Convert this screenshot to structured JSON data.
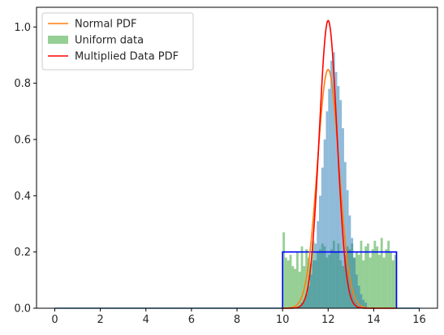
{
  "chart_data": {
    "type": "histogram",
    "title": "",
    "xlabel": "",
    "ylabel": "",
    "xlim": [
      -0.8,
      16.8
    ],
    "ylim": [
      0,
      1.07
    ],
    "xticks": [
      0,
      2,
      4,
      6,
      8,
      10,
      12,
      14,
      16
    ],
    "yticks": [
      0.0,
      0.2,
      0.4,
      0.6,
      0.8,
      1.0
    ],
    "xtick_labels": [
      "0",
      "2",
      "4",
      "6",
      "8",
      "10",
      "12",
      "14",
      "16"
    ],
    "ytick_labels": [
      "0.0",
      "0.2",
      "0.4",
      "0.6",
      "0.8",
      "1.0"
    ],
    "grid": false,
    "legend": {
      "placement": "top-left",
      "entries": [
        {
          "label": "Normal PDF",
          "color": "#ff7f0e",
          "kind": "line"
        },
        {
          "label": "Uniform data",
          "color": "#2ca02c",
          "kind": "patch"
        },
        {
          "label": "Multiplied Data PDF",
          "color": "#ff0000",
          "kind": "line"
        }
      ]
    },
    "series": [
      {
        "name": "Uniform data",
        "kind": "histogram",
        "color": "#2ca02c",
        "opacity": 0.5,
        "bin_start": 10.0,
        "bin_width": 0.1,
        "values": [
          0.27,
          0.18,
          0.17,
          0.19,
          0.15,
          0.14,
          0.2,
          0.13,
          0.22,
          0.15,
          0.21,
          0.18,
          0.16,
          0.24,
          0.17,
          0.2,
          0.21,
          0.23,
          0.22,
          0.18,
          0.19,
          0.21,
          0.24,
          0.2,
          0.23,
          0.17,
          0.15,
          0.19,
          0.22,
          0.21,
          0.23,
          0.18,
          0.2,
          0.19,
          0.24,
          0.17,
          0.22,
          0.23,
          0.18,
          0.21,
          0.24,
          0.22,
          0.19,
          0.25,
          0.18,
          0.21,
          0.24,
          0.2,
          0.17,
          0.19
        ]
      },
      {
        "name": "Normal data",
        "kind": "histogram",
        "color": "#1f77b4",
        "opacity": 0.5,
        "bin_start": 10.7,
        "bin_width": 0.1,
        "values": [
          0.01,
          0.02,
          0.03,
          0.05,
          0.08,
          0.12,
          0.17,
          0.23,
          0.31,
          0.4,
          0.5,
          0.6,
          0.7,
          0.78,
          0.88,
          0.91,
          0.84,
          0.79,
          0.74,
          0.64,
          0.52,
          0.42,
          0.33,
          0.25,
          0.18,
          0.12,
          0.08,
          0.05,
          0.03,
          0.02
        ]
      },
      {
        "name": "Uniform PDF",
        "kind": "step",
        "color": "#1f77b4",
        "x": [
          0,
          10,
          10,
          15,
          15,
          16
        ],
        "y": [
          0,
          0,
          0.2,
          0.2,
          0,
          0
        ]
      },
      {
        "name": "Uniform PDF outline",
        "kind": "step",
        "color": "#0000ff",
        "x": [
          10,
          10,
          15,
          15
        ],
        "y": [
          0,
          0.2,
          0.2,
          0
        ]
      },
      {
        "name": "Normal PDF",
        "kind": "gaussian",
        "color": "#ff7f0e",
        "mu": 12.0,
        "sigma": 0.47,
        "x_range": [
          10,
          15
        ]
      },
      {
        "name": "Multiplied Data PDF",
        "kind": "gaussian",
        "color": "#ff0000",
        "mu": 12.0,
        "sigma": 0.39,
        "x_range": [
          10,
          15
        ]
      }
    ]
  }
}
